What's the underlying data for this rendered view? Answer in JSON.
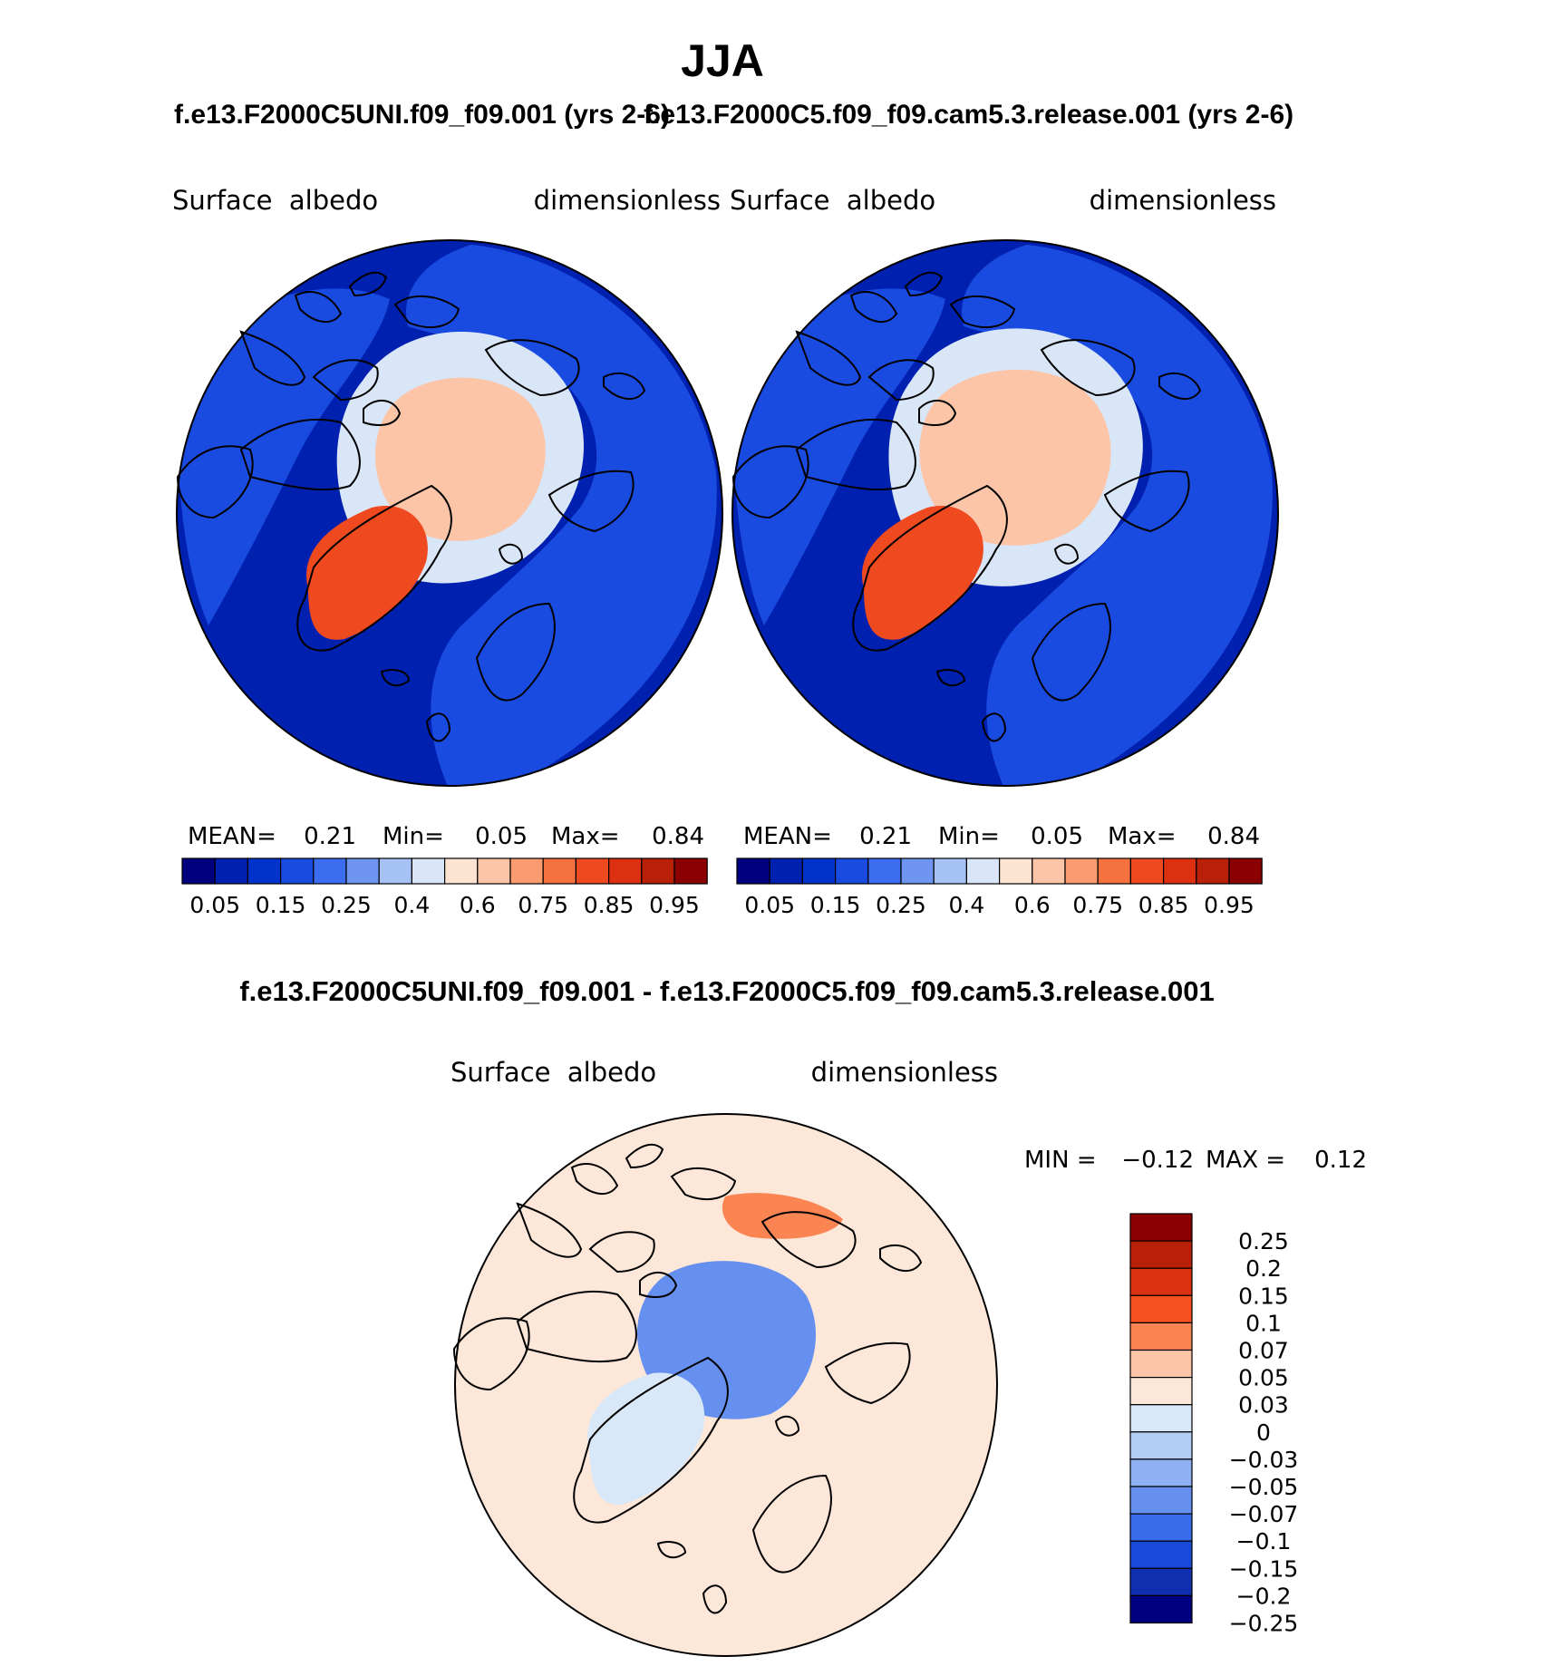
{
  "chart_data": {
    "type": "polar_contour_map",
    "season_title": "JJA",
    "panels": [
      {
        "case_title": "f.e13.F2000C5UNI.f09_f09.001 (yrs 2-6)",
        "field": "Surface  albedo",
        "units": "dimensionless",
        "stats": {
          "mean_label": "MEAN=",
          "mean": "0.21",
          "min_label": "Min=",
          "min": "0.05",
          "max_label": "Max=",
          "max": "0.84"
        },
        "colorbar_levels": [
          0.05,
          0.1,
          0.15,
          0.2,
          0.25,
          0.3,
          0.4,
          0.5,
          0.6,
          0.7,
          0.75,
          0.8,
          0.85,
          0.9,
          0.95
        ],
        "colorbar_labels": [
          "0.05",
          "0.15",
          "0.25",
          "0.4",
          "0.6",
          "0.75",
          "0.85",
          "0.95"
        ],
        "feature_fill_levels": {
          "greenland": 0.84,
          "arctic_ocean": 0.62,
          "ice_margin": 0.45,
          "land": 0.15,
          "ocean": 0.08
        }
      },
      {
        "case_title": "f.e13.F2000C5.f09_f09.cam5.3.release.001 (yrs 2-6)",
        "field": "Surface  albedo",
        "units": "dimensionless",
        "stats": {
          "mean_label": "MEAN=",
          "mean": "0.21",
          "min_label": "Min=",
          "min": "0.05",
          "max_label": "Max=",
          "max": "0.84"
        },
        "colorbar_levels": [
          0.05,
          0.1,
          0.15,
          0.2,
          0.25,
          0.3,
          0.4,
          0.5,
          0.6,
          0.7,
          0.75,
          0.8,
          0.85,
          0.9,
          0.95
        ],
        "colorbar_labels": [
          "0.05",
          "0.15",
          "0.25",
          "0.4",
          "0.6",
          "0.75",
          "0.85",
          "0.95"
        ],
        "feature_fill_levels": {
          "greenland": 0.84,
          "arctic_ocean": 0.66,
          "ice_margin": 0.45,
          "land": 0.15,
          "ocean": 0.08
        }
      }
    ],
    "difference": {
      "title": "f.e13.F2000C5UNI.f09_f09.001 - f.e13.F2000C5.f09_f09.cam5.3.release.001",
      "field": "Surface  albedo",
      "units": "dimensionless",
      "stats": {
        "min_label": "MIN =",
        "min": "−0.12",
        "max_label": "MAX =",
        "max": "0.12"
      },
      "colorbar_levels": [
        0.25,
        0.2,
        0.15,
        0.1,
        0.07,
        0.05,
        0.03,
        0,
        -0.03,
        -0.05,
        -0.07,
        -0.1,
        -0.15,
        -0.2,
        -0.25
      ],
      "colorbar_labels": [
        "0.25",
        "0.2",
        "0.15",
        "0.1",
        "0.07",
        "0.05",
        "0.03",
        "0",
        "−0.03",
        "−0.05",
        "−0.07",
        "−0.1",
        "−0.15",
        "−0.2",
        "−0.25"
      ],
      "feature_fill_levels": {
        "background": 0.01,
        "arctic_ocean": -0.08,
        "east_siberia": 0.06,
        "greenland": -0.01
      }
    },
    "palettes": {
      "albedo": [
        "#00007f",
        "#0020b0",
        "#0033cc",
        "#1a4be0",
        "#3c6df0",
        "#6e95f0",
        "#a6c2f5",
        "#d9e6f8",
        "#fde3d2",
        "#fcc5a8",
        "#fa9c70",
        "#f5713f",
        "#ef4a1f",
        "#dc3010",
        "#b82008",
        "#8b0000"
      ],
      "difference": [
        "#8b0000",
        "#b82008",
        "#dc3010",
        "#f5501d",
        "#fa8452",
        "#fcc5a8",
        "#fde7d8",
        "#d9e8f8",
        "#b4cdf5",
        "#8fb0f2",
        "#6590ef",
        "#3a6bea",
        "#1a48d9",
        "#0f2fb0",
        "#000080"
      ]
    }
  }
}
